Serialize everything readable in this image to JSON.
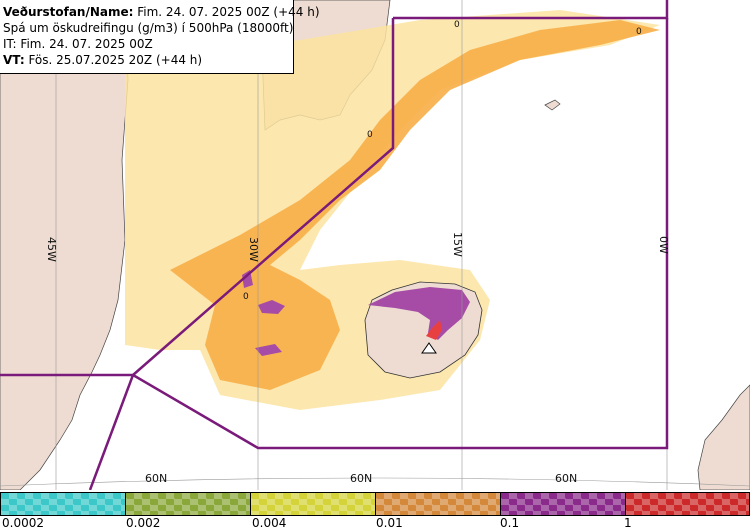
{
  "header": {
    "line1_bold": "Veðurstofan/Name:",
    "line1_rest": " Fim. 24. 07. 2025 00Z (+44 h)",
    "line2": "Spá um öskudreifingu (g/m3) í 500hPa (18000ft)",
    "line3": "IT: Fim. 24. 07. 2025 00Z",
    "line4_bold": "VT:",
    "line4_rest": " Fös. 25.07.2025 20Z (+44 h)"
  },
  "grid": {
    "lon_labels": [
      "45W",
      "30W",
      "15W",
      "0W"
    ],
    "lat_labels": [
      "60N",
      "60N",
      "60N"
    ]
  },
  "markers": [
    "0",
    "0",
    "0",
    "0"
  ],
  "legend": {
    "ticks": [
      "0.0002",
      "0.002",
      "0.004",
      "0.01",
      "0.1",
      "1"
    ],
    "colors": [
      "#3cc8c8",
      "#8aa83a",
      "#d4d43a",
      "#d4883a",
      "#8a2a8a",
      "#cc2a2a"
    ]
  },
  "colors": {
    "land": "#eedcd2",
    "ash_light": "#fbe3a0",
    "ash_orange": "#f8b04a",
    "ash_purple": "#a64ca6",
    "ash_red": "#e84040",
    "boundary": "#7a1a7a"
  }
}
